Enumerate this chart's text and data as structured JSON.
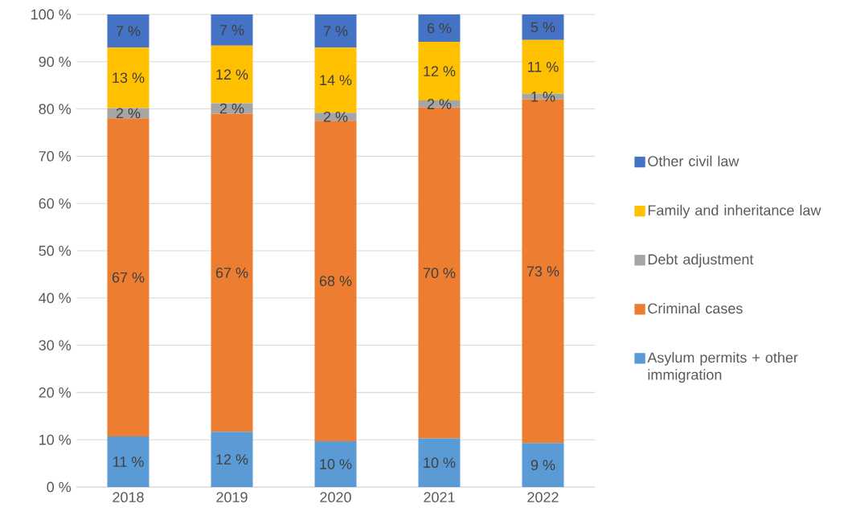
{
  "chart_data": {
    "type": "bar",
    "stacked": true,
    "categories": [
      "2018",
      "2019",
      "2020",
      "2021",
      "2022"
    ],
    "series": [
      {
        "name": "Asylum permits + other immigration",
        "color": "#5b9bd5",
        "values": [
          10.7,
          11.7,
          9.7,
          10.3,
          9.3
        ],
        "value_labels": [
          "11 %",
          "12 %",
          "10 %",
          "10 %",
          "9 %"
        ]
      },
      {
        "name": "Criminal cases",
        "color": "#ed7d31",
        "values": [
          67.3,
          67.3,
          67.8,
          70.0,
          72.7
        ],
        "value_labels": [
          "67 %",
          "67 %",
          "68 %",
          "70 %",
          "73 %"
        ]
      },
      {
        "name": "Debt adjustment",
        "color": "#a5a5a5",
        "values": [
          2.2,
          2.2,
          1.7,
          1.5,
          1.2
        ],
        "value_labels": [
          "2 %",
          "2 %",
          "2 %",
          "2 %",
          "1 %"
        ]
      },
      {
        "name": "Family and inheritance law",
        "color": "#ffc000",
        "values": [
          12.8,
          12.2,
          13.8,
          12.4,
          11.4
        ],
        "value_labels": [
          "13 %",
          "12 %",
          "14 %",
          "12 %",
          "11 %"
        ]
      },
      {
        "name": "Other civil law",
        "color": "#4472c4",
        "values": [
          7.0,
          6.6,
          7.0,
          5.8,
          5.4
        ],
        "value_labels": [
          "7 %",
          "7 %",
          "7 %",
          "6 %",
          "5 %"
        ]
      }
    ],
    "ylim": [
      0,
      100
    ],
    "yticks": [
      {
        "value": 0,
        "label": "0 %"
      },
      {
        "value": 10,
        "label": "10 %"
      },
      {
        "value": 20,
        "label": "20 %"
      },
      {
        "value": 30,
        "label": "30 %"
      },
      {
        "value": 40,
        "label": "40 %"
      },
      {
        "value": 50,
        "label": "50 %"
      },
      {
        "value": 60,
        "label": "60 %"
      },
      {
        "value": 70,
        "label": "70 %"
      },
      {
        "value": 80,
        "label": "80 %"
      },
      {
        "value": 90,
        "label": "90 %"
      },
      {
        "value": 100,
        "label": "100 %"
      }
    ],
    "grid": "y",
    "legend": "right"
  }
}
